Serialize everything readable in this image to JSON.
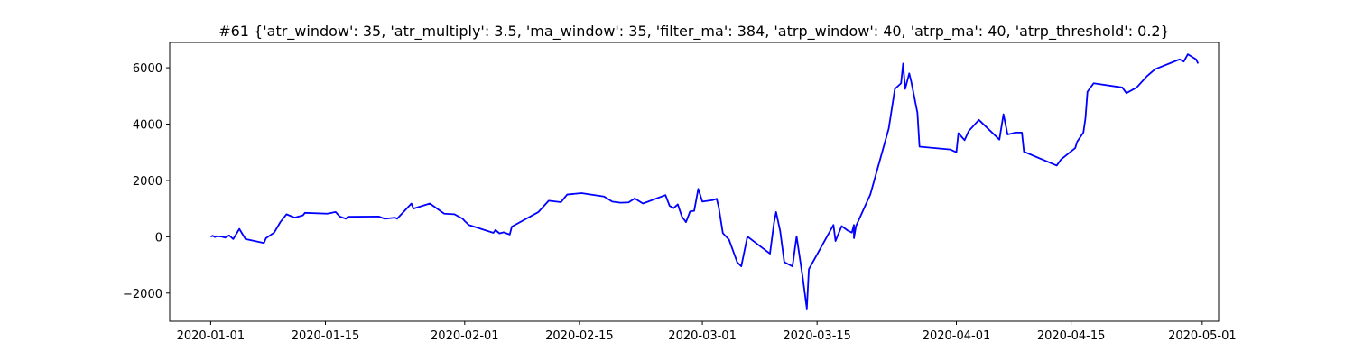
{
  "chart_data": {
    "type": "line",
    "title": "#61 {'atr_window': 35, 'atr_multiply': 3.5, 'ma_window': 35, 'filter_ma': 384, 'atrp_window': 40, 'atrp_ma': 40, 'atrp_threshold': 0.2}",
    "xlabel": "",
    "ylabel": "",
    "x_type": "date",
    "xlim": [
      "2019-12-27",
      "2020-05-03"
    ],
    "ylim": [
      -3000,
      6900
    ],
    "grid": false,
    "legend": "none",
    "x_ticks": [
      "2020-01-01",
      "2020-01-15",
      "2020-02-01",
      "2020-02-15",
      "2020-03-01",
      "2020-03-15",
      "2020-04-01",
      "2020-04-15",
      "2020-05-01"
    ],
    "x_tick_labels": [
      "2020-01-01",
      "2020-01-15",
      "2020-02-01",
      "2020-02-15",
      "2020-03-01",
      "2020-03-15",
      "2020-04-01",
      "2020-04-15",
      "2020-05-01"
    ],
    "y_ticks": [
      -2000,
      0,
      2000,
      4000,
      6000
    ],
    "y_tick_labels": [
      "−2000",
      "0",
      "2000",
      "4000",
      "6000"
    ],
    "series": [
      {
        "color": "#0000ff",
        "points": [
          [
            "2020-01-01 00:00",
            0
          ],
          [
            "2020-01-01 06:00",
            40
          ],
          [
            "2020-01-01 12:00",
            -10
          ],
          [
            "2020-01-01 18:00",
            20
          ],
          [
            "2020-01-02 06:00",
            10
          ],
          [
            "2020-01-02 18:00",
            -30
          ],
          [
            "2020-01-03 06:00",
            50
          ],
          [
            "2020-01-03 18:00",
            -80
          ],
          [
            "2020-01-04 12:00",
            280
          ],
          [
            "2020-01-05 06:00",
            -80
          ],
          [
            "2020-01-07 12:00",
            -220
          ],
          [
            "2020-01-07 18:00",
            -50
          ],
          [
            "2020-01-08 18:00",
            150
          ],
          [
            "2020-01-09 12:00",
            520
          ],
          [
            "2020-01-10 06:00",
            800
          ],
          [
            "2020-01-11 06:00",
            680
          ],
          [
            "2020-01-12 06:00",
            760
          ],
          [
            "2020-01-12 12:00",
            850
          ],
          [
            "2020-01-15 06:00",
            820
          ],
          [
            "2020-01-16 06:00",
            880
          ],
          [
            "2020-01-16 18:00",
            720
          ],
          [
            "2020-01-17 12:00",
            640
          ],
          [
            "2020-01-17 18:00",
            710
          ],
          [
            "2020-01-21 12:00",
            720
          ],
          [
            "2020-01-22 06:00",
            640
          ],
          [
            "2020-01-23 12:00",
            680
          ],
          [
            "2020-01-23 18:00",
            640
          ],
          [
            "2020-01-25 12:00",
            1180
          ],
          [
            "2020-01-25 18:00",
            1000
          ],
          [
            "2020-01-27 18:00",
            1180
          ],
          [
            "2020-01-29 12:00",
            820
          ],
          [
            "2020-01-30 18:00",
            800
          ],
          [
            "2020-01-31 18:00",
            640
          ],
          [
            "2020-02-01 00:00",
            560
          ],
          [
            "2020-02-01 12:00",
            420
          ],
          [
            "2020-02-04 12:00",
            140
          ],
          [
            "2020-02-04 18:00",
            240
          ],
          [
            "2020-02-05 06:00",
            120
          ],
          [
            "2020-02-05 18:00",
            160
          ],
          [
            "2020-02-06 12:00",
            80
          ],
          [
            "2020-02-06 18:00",
            360
          ],
          [
            "2020-02-10 00:00",
            880
          ],
          [
            "2020-02-11 06:00",
            1280
          ],
          [
            "2020-02-12 18:00",
            1230
          ],
          [
            "2020-02-13 12:00",
            1500
          ],
          [
            "2020-02-15 06:00",
            1550
          ],
          [
            "2020-02-18 00:00",
            1430
          ],
          [
            "2020-02-19 00:00",
            1250
          ],
          [
            "2020-02-20 00:00",
            1210
          ],
          [
            "2020-02-21 00:00",
            1220
          ],
          [
            "2020-02-21 18:00",
            1360
          ],
          [
            "2020-02-22 18:00",
            1180
          ],
          [
            "2020-02-25 12:00",
            1480
          ],
          [
            "2020-02-26 00:00",
            1100
          ],
          [
            "2020-02-26 12:00",
            1020
          ],
          [
            "2020-02-27 00:00",
            1150
          ],
          [
            "2020-02-27 12:00",
            720
          ],
          [
            "2020-02-28 00:00",
            520
          ],
          [
            "2020-02-28 12:00",
            900
          ],
          [
            "2020-02-29 00:00",
            920
          ],
          [
            "2020-02-29 12:00",
            1700
          ],
          [
            "2020-03-01 00:00",
            1250
          ],
          [
            "2020-03-02 06:00",
            1300
          ],
          [
            "2020-03-02 18:00",
            1350
          ],
          [
            "2020-03-03 00:00",
            1050
          ],
          [
            "2020-03-03 12:00",
            130
          ],
          [
            "2020-03-04 06:00",
            -100
          ],
          [
            "2020-03-05 06:00",
            -900
          ],
          [
            "2020-03-05 18:00",
            -1050
          ],
          [
            "2020-03-06 12:00",
            10
          ],
          [
            "2020-03-09 06:00",
            -600
          ],
          [
            "2020-03-09 18:00",
            500
          ],
          [
            "2020-03-10 00:00",
            880
          ],
          [
            "2020-03-10 12:00",
            200
          ],
          [
            "2020-03-11 00:00",
            -900
          ],
          [
            "2020-03-12 00:00",
            -1050
          ],
          [
            "2020-03-12 12:00",
            20
          ],
          [
            "2020-03-13 06:00",
            -1450
          ],
          [
            "2020-03-13 18:00",
            -2550
          ],
          [
            "2020-03-14 00:00",
            -1150
          ],
          [
            "2020-03-17 00:00",
            420
          ],
          [
            "2020-03-17 06:00",
            -150
          ],
          [
            "2020-03-18 00:00",
            380
          ],
          [
            "2020-03-18 18:00",
            220
          ],
          [
            "2020-03-19 06:00",
            150
          ],
          [
            "2020-03-19 12:00",
            420
          ],
          [
            "2020-03-19 12:00",
            -50
          ],
          [
            "2020-03-19 18:00",
            380
          ],
          [
            "2020-03-21 12:00",
            1500
          ],
          [
            "2020-03-23 18:00",
            3850
          ],
          [
            "2020-03-24 12:00",
            5250
          ],
          [
            "2020-03-25 06:00",
            5450
          ],
          [
            "2020-03-25 12:00",
            6150
          ],
          [
            "2020-03-25 18:00",
            5250
          ],
          [
            "2020-03-26 06:00",
            5800
          ],
          [
            "2020-03-26 12:00",
            5500
          ],
          [
            "2020-03-27 06:00",
            4400
          ],
          [
            "2020-03-27 12:00",
            3200
          ],
          [
            "2020-03-31 06:00",
            3100
          ],
          [
            "2020-04-01 00:00",
            3000
          ],
          [
            "2020-04-01 06:00",
            3680
          ],
          [
            "2020-04-02 00:00",
            3430
          ],
          [
            "2020-04-02 12:00",
            3750
          ],
          [
            "2020-04-03 18:00",
            4150
          ],
          [
            "2020-04-06 06:00",
            3450
          ],
          [
            "2020-04-06 18:00",
            4350
          ],
          [
            "2020-04-07 06:00",
            3630
          ],
          [
            "2020-04-08 06:00",
            3700
          ],
          [
            "2020-04-09 00:00",
            3700
          ],
          [
            "2020-04-09 06:00",
            3020
          ],
          [
            "2020-04-13 06:00",
            2530
          ],
          [
            "2020-04-13 18:00",
            2740
          ],
          [
            "2020-04-15 12:00",
            3150
          ],
          [
            "2020-04-15 18:00",
            3380
          ],
          [
            "2020-04-16 12:00",
            3700
          ],
          [
            "2020-04-16 18:00",
            4200
          ],
          [
            "2020-04-17 00:00",
            5150
          ],
          [
            "2020-04-17 18:00",
            5450
          ],
          [
            "2020-04-21 06:00",
            5300
          ],
          [
            "2020-04-21 18:00",
            5100
          ],
          [
            "2020-04-23 00:00",
            5300
          ],
          [
            "2020-04-24 06:00",
            5700
          ],
          [
            "2020-04-25 06:00",
            5950
          ],
          [
            "2020-04-28 06:00",
            6300
          ],
          [
            "2020-04-28 18:00",
            6220
          ],
          [
            "2020-04-29 06:00",
            6480
          ],
          [
            "2020-04-30 06:00",
            6300
          ],
          [
            "2020-04-30 12:00",
            6150
          ]
        ]
      }
    ]
  }
}
